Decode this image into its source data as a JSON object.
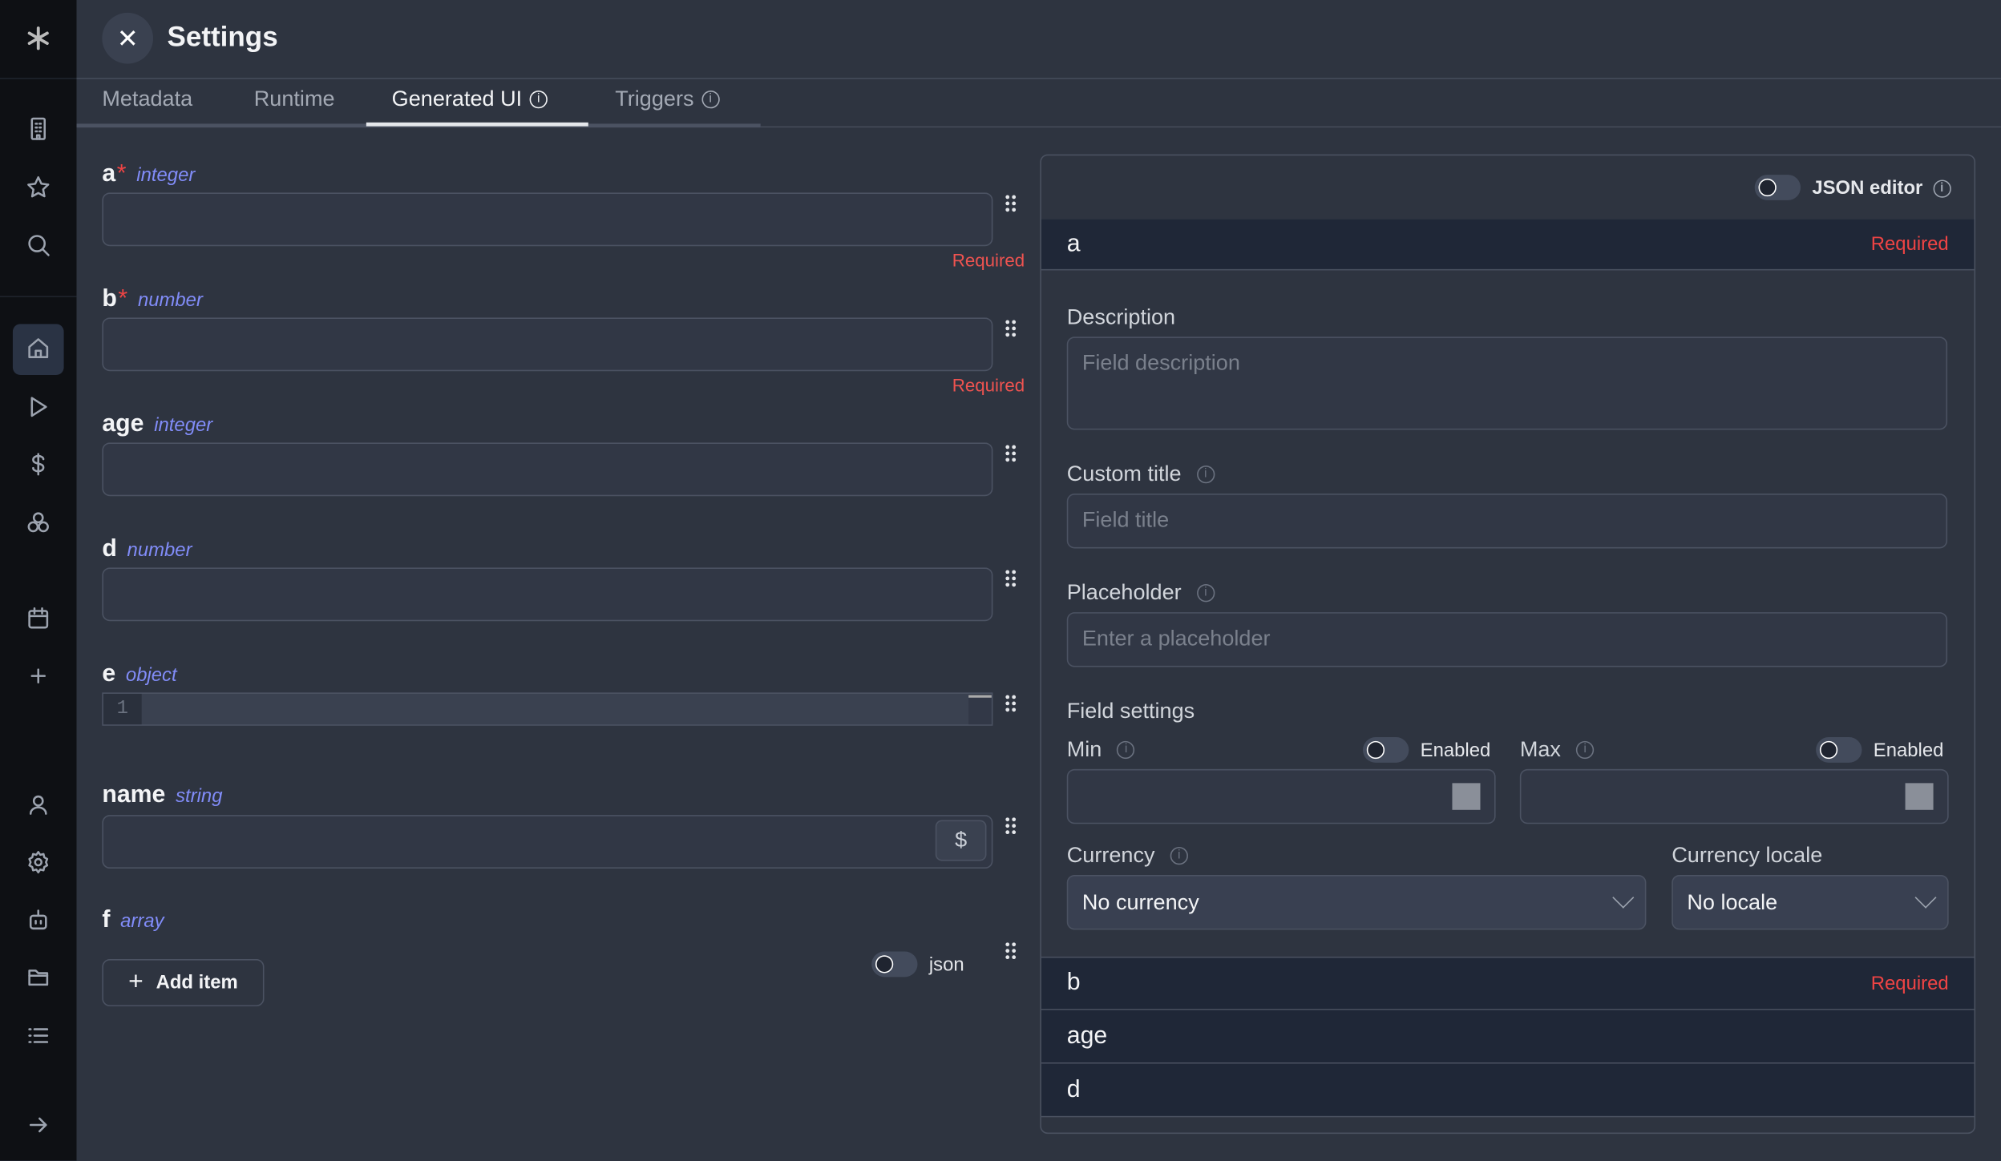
{
  "header": {
    "title": "Settings",
    "close_icon": "close-icon"
  },
  "tabs": [
    {
      "label": "Metadata"
    },
    {
      "label": "Runtime"
    },
    {
      "label": "Generated UI",
      "info": true,
      "active": true
    },
    {
      "label": "Triggers",
      "info": true
    }
  ],
  "sidebar": {
    "icons": [
      "logo",
      "building-icon",
      "star-icon",
      "search-icon",
      "home-icon",
      "play-icon",
      "dollar-icon",
      "cubes-icon",
      "calendar-icon",
      "plus-icon",
      "user-icon",
      "gear-icon",
      "robot-icon",
      "folder-icon",
      "list-icon",
      "arrow-right-icon"
    ],
    "active": "home-icon"
  },
  "form": {
    "fields": [
      {
        "name": "a",
        "required": true,
        "type": "integer",
        "error": "Required"
      },
      {
        "name": "b",
        "required": true,
        "type": "number",
        "error": "Required"
      },
      {
        "name": "age",
        "required": false,
        "type": "integer"
      },
      {
        "name": "d",
        "required": false,
        "type": "number"
      },
      {
        "name": "e",
        "required": false,
        "type": "object",
        "editor_line": "1"
      },
      {
        "name": "name",
        "required": false,
        "type": "string",
        "dollar": "$"
      },
      {
        "name": "f",
        "required": false,
        "type": "array",
        "add_item": "Add item",
        "json_toggle": "json"
      }
    ],
    "required_mark": "*"
  },
  "panel": {
    "json_editor_label": "JSON editor",
    "selected": {
      "name": "a",
      "badge": "Required"
    },
    "description": {
      "label": "Description",
      "placeholder": "Field description"
    },
    "custom_title": {
      "label": "Custom title",
      "placeholder": "Field title"
    },
    "placeholder": {
      "label": "Placeholder",
      "placeholder": "Enter a placeholder"
    },
    "field_settings": "Field settings",
    "min": {
      "label": "Min",
      "enabled": "Enabled"
    },
    "max": {
      "label": "Max",
      "enabled": "Enabled"
    },
    "currency": {
      "label": "Currency",
      "value": "No currency"
    },
    "currency_locale": {
      "label": "Currency locale",
      "value": "No locale"
    },
    "rows": [
      {
        "name": "b",
        "badge": "Required"
      },
      {
        "name": "age"
      },
      {
        "name": "d"
      }
    ]
  },
  "colors": {
    "accent_type": "#818cf8",
    "required": "#ef4444",
    "sidebar_bg": "#0e1014",
    "main_bg": "#2e3440"
  }
}
